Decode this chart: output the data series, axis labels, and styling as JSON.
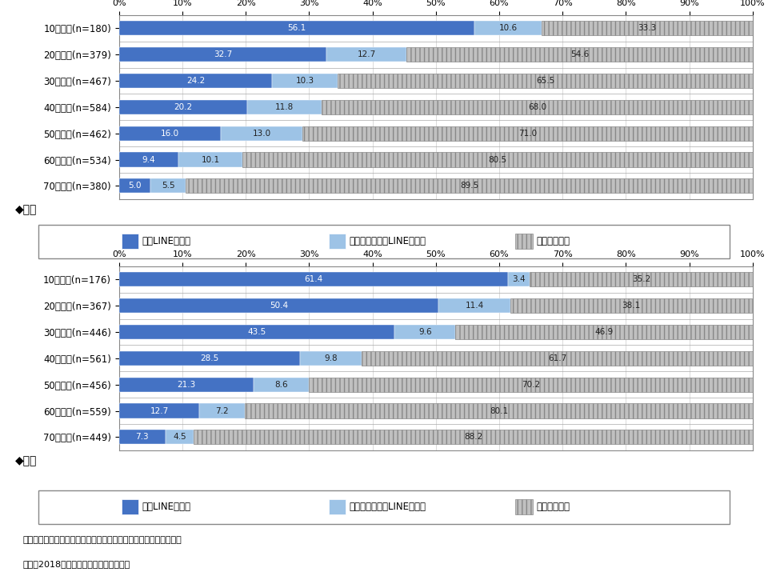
{
  "title_male": "◆男性",
  "title_female": "◆女性",
  "male_categories": [
    "10代男性(n=180)",
    "20代男性(n=379)",
    "30代男性(n=467)",
    "40代男性(n=584)",
    "50代男性(n=462)",
    "60代男性(n=534)",
    "70代男性(n=380)"
  ],
  "female_categories": [
    "10代女性(n=176)",
    "20代女性(n=367)",
    "30代女性(n=446)",
    "40代女性(n=561)",
    "50代女性(n=456)",
    "60代女性(n=559)",
    "70代女性(n=449)"
  ],
  "male_daily": [
    56.1,
    32.7,
    24.2,
    20.2,
    16.0,
    9.4,
    5.0
  ],
  "male_sometimes": [
    10.6,
    12.7,
    10.3,
    11.8,
    13.0,
    10.1,
    5.5
  ],
  "male_not": [
    33.3,
    54.6,
    65.5,
    68.0,
    71.0,
    80.5,
    89.5
  ],
  "female_daily": [
    61.4,
    50.4,
    43.5,
    28.5,
    21.3,
    12.7,
    7.3
  ],
  "female_sometimes": [
    3.4,
    11.4,
    9.6,
    9.8,
    8.6,
    7.2,
    4.5
  ],
  "female_not": [
    35.2,
    38.1,
    46.9,
    61.7,
    70.2,
    80.1,
    88.2
  ],
  "color_daily": "#4472C4",
  "color_sometimes": "#9DC3E6",
  "color_not": "#C0C0C0",
  "legend_labels": [
    "毎日LINEを利用",
    "毎日ではないがLINEを利用",
    "使っていない"
  ],
  "note": "注：「使っていない」はスマホ・ケータイ未所有者も含めて集計。",
  "source": "出所：2018年一般向けモバイル動向調査",
  "bar_height": 0.55,
  "font_size_label": 8.5,
  "font_size_value": 7.5,
  "font_size_title": 10,
  "font_size_legend": 8.5,
  "font_size_note": 8,
  "font_size_tick": 8
}
